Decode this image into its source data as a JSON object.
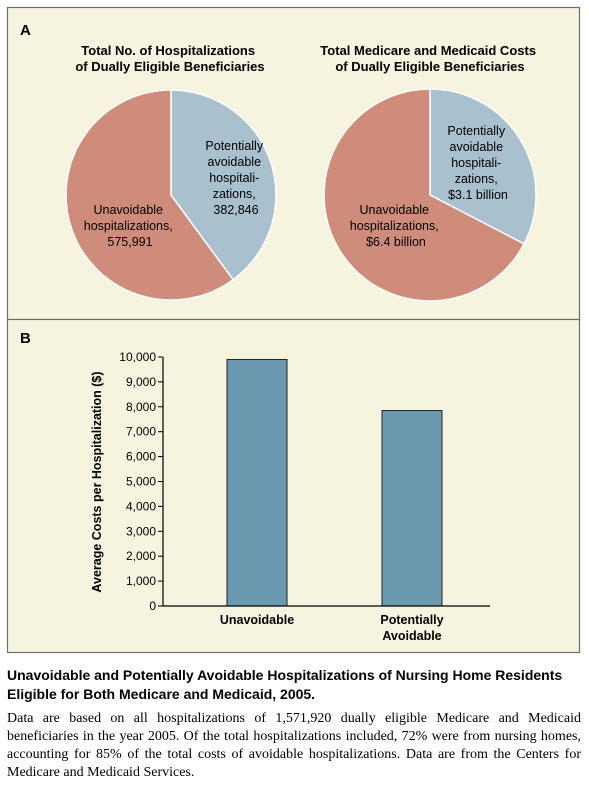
{
  "panel_a": {
    "letter": "A",
    "pies": [
      {
        "title_lines": [
          "Total No. of Hospitalizations",
          "of Dually Eligible Beneficiaries"
        ],
        "slices": [
          {
            "label_lines": [
              "Potentially",
              "avoidable",
              "hospitali-",
              "zations,",
              "382,846"
            ],
            "value": 382846,
            "color": "#a9c0cf"
          },
          {
            "label_lines": [
              "Unavoidable",
              "hospitalizations,",
              "575,991"
            ],
            "value": 575991,
            "color": "#d08c7b"
          }
        ]
      },
      {
        "title_lines": [
          "Total Medicare and Medicaid Costs",
          "of Dually Eligible Beneficiaries"
        ],
        "slices": [
          {
            "label_lines": [
              "Potentially",
              "avoidable",
              "hospitali-",
              "zations,",
              "$3.1 billion"
            ],
            "value": 3.1,
            "color": "#a9c0cf"
          },
          {
            "label_lines": [
              "Unavoidable",
              "hospitalizations,",
              "$6.4 billion"
            ],
            "value": 6.4,
            "color": "#d08c7b"
          }
        ]
      }
    ]
  },
  "panel_b": {
    "letter": "B"
  },
  "chart_data": [
    {
      "type": "pie",
      "title": "Total No. of Hospitalizations of Dually Eligible Beneficiaries",
      "categories": [
        "Potentially avoidable hospitalizations",
        "Unavoidable hospitalizations"
      ],
      "values": [
        382846,
        575991
      ]
    },
    {
      "type": "pie",
      "title": "Total Medicare and Medicaid Costs of Dually Eligible Beneficiaries",
      "categories": [
        "Potentially avoidable hospitalizations",
        "Unavoidable hospitalizations"
      ],
      "values": [
        3.1,
        6.4
      ],
      "unit": "$ billion"
    },
    {
      "type": "bar",
      "categories": [
        "Unavoidable",
        "Potentially Avoidable"
      ],
      "values": [
        9900,
        7850
      ],
      "ylabel": "Average Costs per Hospitalization ($)",
      "xlabel": "",
      "ylim": [
        0,
        10000
      ],
      "yticks": [
        0,
        1000,
        2000,
        3000,
        4000,
        5000,
        6000,
        7000,
        8000,
        9000,
        10000
      ],
      "ytick_labels": [
        "0",
        "1,000",
        "2,000",
        "3,000",
        "4,000",
        "5,000",
        "6,000",
        "7,000",
        "8,000",
        "9,000",
        "10,000"
      ],
      "bar_color": "#6a98ae",
      "grid": false
    }
  ],
  "caption": {
    "title": "Unavoidable and Potentially Avoidable Hospitalizations of Nursing Home Residents Eligible for Both Medicare and Medicaid, 2005.",
    "body": "Data are based on all hospitalizations of 1,571,920 dually eligible Medicare and Medicaid beneficiaries in the year 2005. Of the total hospitalizations included, 72% were from nursing homes, accounting for 85% of the total costs of avoidable hospitalizations. Data are from the Centers for Medicare and Medicaid Services."
  },
  "colors": {
    "background": "#f6f3df",
    "border": "#6d6d6d",
    "avoidable": "#a9c0cf",
    "unavoidable": "#d08c7b",
    "bar": "#6a98ae"
  }
}
